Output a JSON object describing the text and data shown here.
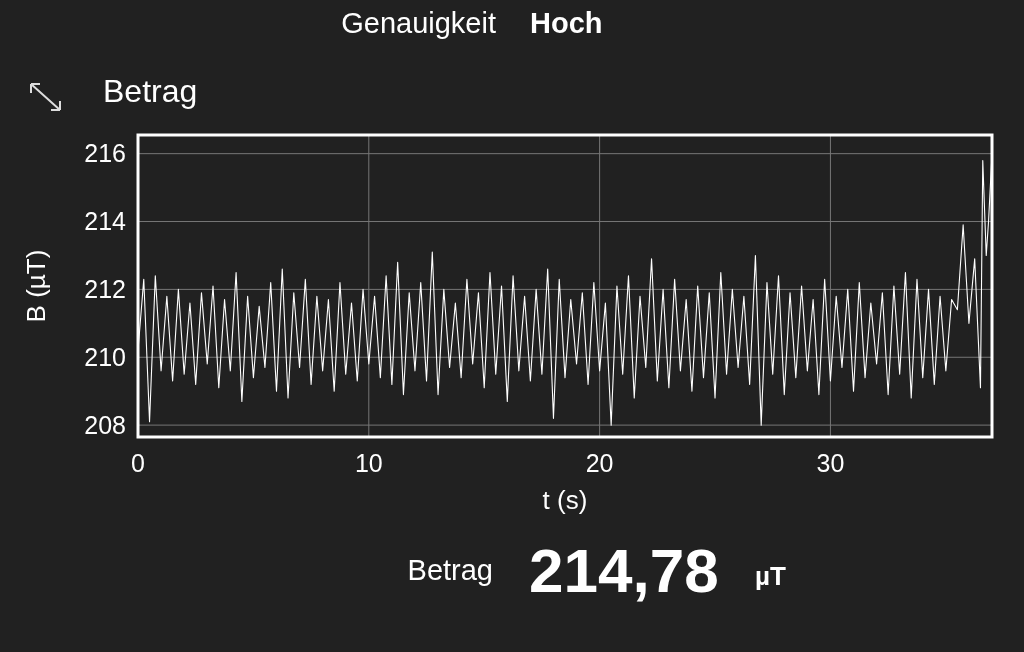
{
  "chart_data": {
    "type": "line",
    "title": "Betrag",
    "xlabel": "t (s)",
    "ylabel": "B (µT)",
    "annotations": [
      "Genauigkeit",
      "Hoch",
      "Betrag",
      "214,78",
      "µT"
    ],
    "xlim": [
      0,
      37
    ],
    "xticks": [
      0,
      10,
      20,
      30
    ],
    "ylim": [
      207.65,
      216.55
    ],
    "yticks": [
      208,
      210,
      212,
      214,
      216
    ],
    "grid": true,
    "series": [
      {
        "color": "#ffffff",
        "x": [
          0,
          0.25,
          0.5,
          0.75,
          1,
          1.25,
          1.5,
          1.75,
          2,
          2.25,
          2.5,
          2.75,
          3,
          3.25,
          3.5,
          3.75,
          4,
          4.25,
          4.5,
          4.75,
          5,
          5.25,
          5.5,
          5.75,
          6,
          6.25,
          6.5,
          6.75,
          7,
          7.25,
          7.5,
          7.75,
          8,
          8.25,
          8.5,
          8.75,
          9,
          9.25,
          9.5,
          9.75,
          10,
          10.25,
          10.5,
          10.75,
          11,
          11.25,
          11.5,
          11.75,
          12,
          12.25,
          12.5,
          12.75,
          13,
          13.25,
          13.5,
          13.75,
          14,
          14.25,
          14.5,
          14.75,
          15,
          15.25,
          15.5,
          15.75,
          16,
          16.25,
          16.5,
          16.75,
          17,
          17.25,
          17.5,
          17.75,
          18,
          18.25,
          18.5,
          18.75,
          19,
          19.25,
          19.5,
          19.75,
          20,
          20.25,
          20.5,
          20.75,
          21,
          21.25,
          21.5,
          21.75,
          22,
          22.25,
          22.5,
          22.75,
          23,
          23.25,
          23.5,
          23.75,
          24,
          24.25,
          24.5,
          24.75,
          25,
          25.25,
          25.5,
          25.75,
          26,
          26.25,
          26.5,
          26.75,
          27,
          27.25,
          27.5,
          27.75,
          28,
          28.25,
          28.5,
          28.75,
          29,
          29.25,
          29.5,
          29.75,
          30,
          30.25,
          30.5,
          30.75,
          31,
          31.25,
          31.5,
          31.75,
          32,
          32.25,
          32.5,
          32.75,
          33,
          33.25,
          33.5,
          33.75,
          34,
          34.25,
          34.5,
          34.75,
          35,
          35.25,
          35.5,
          35.75,
          36,
          36.25,
          36.5,
          36.6,
          36.75,
          36.85,
          37
        ],
        "values": [
          210.2,
          212.3,
          208.1,
          212.4,
          209.6,
          211.8,
          209.3,
          212.0,
          209.5,
          211.6,
          209.2,
          211.9,
          209.8,
          212.1,
          209.1,
          211.7,
          209.6,
          212.5,
          208.7,
          211.8,
          209.4,
          211.5,
          209.7,
          212.2,
          209.0,
          212.6,
          208.8,
          211.9,
          209.7,
          212.3,
          209.2,
          211.8,
          209.6,
          211.7,
          209.0,
          212.2,
          209.5,
          211.6,
          209.3,
          212.0,
          209.8,
          211.8,
          209.4,
          212.4,
          209.2,
          212.8,
          208.9,
          211.9,
          209.6,
          212.2,
          209.3,
          213.1,
          208.9,
          212.0,
          209.7,
          211.6,
          209.4,
          212.3,
          209.8,
          211.9,
          209.1,
          212.5,
          209.5,
          212.1,
          208.7,
          212.4,
          209.6,
          211.8,
          209.3,
          212.0,
          209.5,
          212.6,
          208.2,
          212.3,
          209.4,
          211.7,
          209.8,
          211.9,
          209.2,
          212.2,
          209.6,
          211.6,
          208.0,
          212.1,
          209.5,
          212.4,
          208.8,
          211.8,
          209.7,
          212.9,
          209.3,
          212.0,
          209.1,
          212.3,
          209.6,
          211.7,
          209.0,
          212.1,
          209.4,
          211.9,
          208.8,
          212.5,
          209.5,
          212.0,
          209.7,
          211.8,
          209.2,
          213.0,
          208.0,
          212.2,
          209.5,
          212.4,
          208.9,
          211.9,
          209.4,
          212.1,
          209.6,
          211.7,
          208.9,
          212.3,
          209.3,
          211.8,
          209.7,
          212.0,
          209.0,
          212.2,
          209.4,
          211.6,
          209.8,
          211.9,
          208.9,
          212.1,
          209.5,
          212.5,
          208.8,
          212.3,
          209.4,
          212.0,
          209.2,
          211.8,
          209.6,
          211.7,
          211.4,
          213.9,
          211.0,
          212.9,
          209.1,
          215.8,
          213.0,
          214.0,
          216.0
        ]
      }
    ]
  }
}
